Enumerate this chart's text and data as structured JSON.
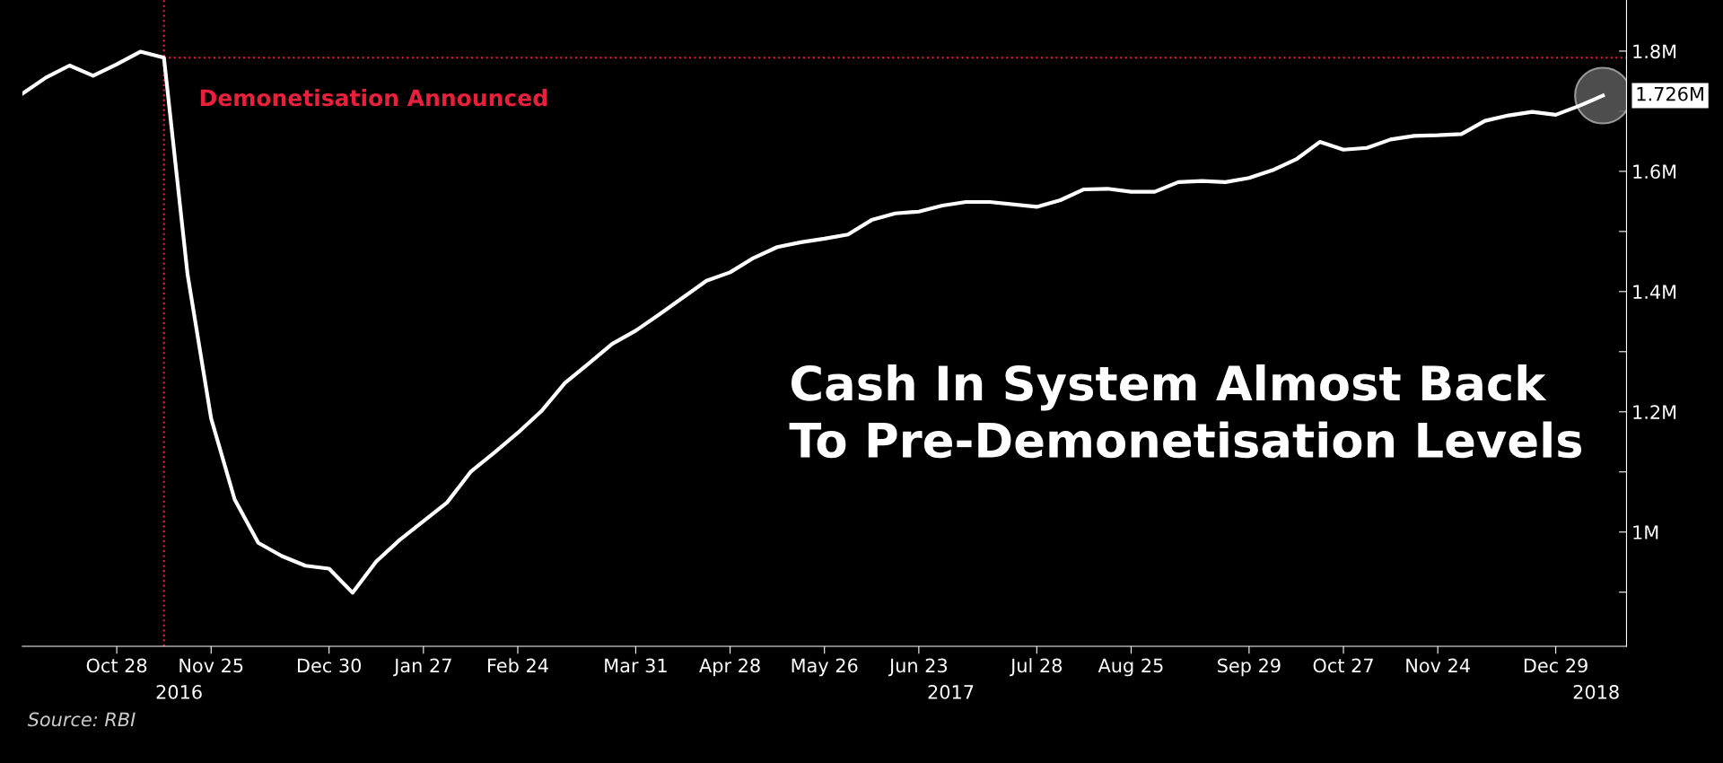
{
  "chart_data": {
    "type": "line",
    "x": [
      "2016-09-30",
      "2016-10-07",
      "2016-10-14",
      "2016-10-21",
      "2016-10-28",
      "2016-11-04",
      "2016-11-11",
      "2016-11-18",
      "2016-11-25",
      "2016-12-02",
      "2016-12-09",
      "2016-12-16",
      "2016-12-23",
      "2016-12-30",
      "2017-01-06",
      "2017-01-13",
      "2017-01-20",
      "2017-01-27",
      "2017-02-03",
      "2017-02-10",
      "2017-02-17",
      "2017-02-24",
      "2017-03-03",
      "2017-03-10",
      "2017-03-17",
      "2017-03-24",
      "2017-03-31",
      "2017-04-07",
      "2017-04-14",
      "2017-04-21",
      "2017-04-28",
      "2017-05-05",
      "2017-05-12",
      "2017-05-19",
      "2017-05-26",
      "2017-06-02",
      "2017-06-09",
      "2017-06-16",
      "2017-06-23",
      "2017-06-30",
      "2017-07-07",
      "2017-07-14",
      "2017-07-28",
      "2017-08-04",
      "2017-08-11",
      "2017-08-18",
      "2017-08-25",
      "2017-09-01",
      "2017-09-08",
      "2017-09-15",
      "2017-09-22",
      "2017-09-29",
      "2017-10-06",
      "2017-10-13",
      "2017-10-20",
      "2017-10-27",
      "2017-11-03",
      "2017-11-10",
      "2017-11-17",
      "2017-11-24",
      "2017-12-01",
      "2017-12-08",
      "2017-12-15",
      "2017-12-22",
      "2017-12-29",
      "2018-01-05",
      "2018-01-12"
    ],
    "series": [
      {
        "color": "#ffffff",
        "values": [
          1.729,
          1.756,
          1.776,
          1.759,
          1.778,
          1.799,
          1.789,
          1.429,
          1.189,
          1.054,
          0.982,
          0.96,
          0.944,
          0.939,
          0.899,
          0.951,
          0.987,
          1.018,
          1.049,
          1.1,
          1.132,
          1.165,
          1.201,
          1.248,
          1.28,
          1.313,
          1.335,
          1.362,
          1.39,
          1.418,
          1.432,
          1.456,
          1.474,
          1.482,
          1.488,
          1.495,
          1.519,
          1.53,
          1.533,
          1.543,
          1.549,
          1.549,
          1.541,
          1.552,
          1.57,
          1.571,
          1.566,
          1.566,
          1.582,
          1.584,
          1.582,
          1.589,
          1.602,
          1.62,
          1.649,
          1.636,
          1.639,
          1.653,
          1.659,
          1.66,
          1.662,
          1.684,
          1.693,
          1.699,
          1.694,
          1.709,
          1.726
        ]
      },
      {
        "type": "scatter",
        "color": "#5a5a5a",
        "marker": "circle",
        "x": [
          "2018-01-12"
        ],
        "values": [
          1.726
        ],
        "value_labels": [
          "1.726M"
        ]
      }
    ],
    "xlim": [
      "2016-09-30",
      "2018-01-19"
    ],
    "xticks": [
      {
        "value": "2016-10-28",
        "label": "Oct 28"
      },
      {
        "value": "2016-11-25",
        "label": "Nov 25"
      },
      {
        "value": "2016-12-30",
        "label": "Dec 30"
      },
      {
        "value": "2017-01-27",
        "label": "Jan 27"
      },
      {
        "value": "2017-02-24",
        "label": "Feb 24"
      },
      {
        "value": "2017-03-31",
        "label": "Mar 31"
      },
      {
        "value": "2017-04-28",
        "label": "Apr 28"
      },
      {
        "value": "2017-05-26",
        "label": "May 26"
      },
      {
        "value": "2017-06-23",
        "label": "Jun 23"
      },
      {
        "value": "2017-07-28",
        "label": "Jul 28"
      },
      {
        "value": "2017-08-25",
        "label": "Aug 25"
      },
      {
        "value": "2017-09-29",
        "label": "Sep 29"
      },
      {
        "value": "2017-10-27",
        "label": "Oct 27"
      },
      {
        "value": "2017-11-24",
        "label": "Nov 24"
      },
      {
        "value": "2017-12-29",
        "label": "Dec 29"
      }
    ],
    "ylim": [
      0.81,
      1.885
    ],
    "yticks": [
      {
        "value": 0.9,
        "label": null
      },
      {
        "value": 1,
        "label": "1M"
      },
      {
        "value": 1.1,
        "label": null
      },
      {
        "value": 1.2,
        "label": "1.2M"
      },
      {
        "value": 1.3,
        "label": null
      },
      {
        "value": 1.4,
        "label": "1.4M"
      },
      {
        "value": 1.5,
        "label": null
      },
      {
        "value": 1.6,
        "label": "1.6M"
      },
      {
        "value": 1.7,
        "label": null
      },
      {
        "value": 1.8,
        "label": "1.8M"
      }
    ],
    "ref_lines": [
      {
        "axis": "x",
        "value": "2016-11-11",
        "label": "Demonetisation Announced",
        "color": "#e8203c",
        "line_style": "dotted"
      },
      {
        "axis": "y",
        "value": 1.789,
        "color": "#e8203c",
        "line_style": "dotted"
      }
    ],
    "annotations": [
      "2016",
      "2017",
      "2018",
      "Cash In System Almost Back\nTo Pre-Demonetisation Levels",
      "Source: RBI"
    ],
    "grid": false,
    "legend": false,
    "marker": "none",
    "line_style": "solid"
  }
}
